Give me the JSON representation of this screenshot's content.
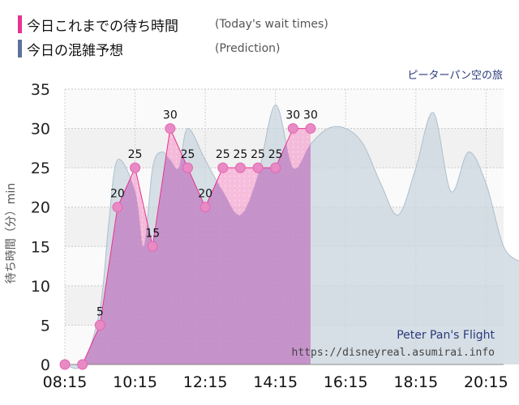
{
  "legend": {
    "today": {
      "label_jp": "今日これまでの待ち時間",
      "label_en": "(Today's wait times)",
      "color": "#e8338f"
    },
    "prediction": {
      "label_jp": "今日の混雑予想",
      "label_en": "(Prediction)",
      "color": "#5b7399"
    }
  },
  "ride": {
    "name_jp": "ピーターパン空の旅",
    "name_en": "Peter Pan's Flight",
    "url": "https://disneyreal.asumirai.info"
  },
  "chart_data": {
    "type": "area",
    "ylabel": "待ち時間（分）min",
    "ylim": [
      0,
      35
    ],
    "yticks": [
      0,
      5,
      10,
      15,
      20,
      25,
      30,
      35
    ],
    "xticks": [
      "08:15",
      "10:15",
      "12:15",
      "14:15",
      "16:15",
      "18:15",
      "20:15"
    ],
    "xlim_minutes": [
      495,
      1245
    ],
    "grid": true,
    "series": [
      {
        "name": "今日これまでの待ち時間",
        "kind": "actual",
        "color": "#e8338f",
        "points": [
          {
            "t": "08:15",
            "v": 0,
            "label": ""
          },
          {
            "t": "08:45",
            "v": 0,
            "label": ""
          },
          {
            "t": "09:15",
            "v": 5,
            "label": "5"
          },
          {
            "t": "09:45",
            "v": 20,
            "label": "20"
          },
          {
            "t": "10:15",
            "v": 25,
            "label": "25"
          },
          {
            "t": "10:45",
            "v": 15,
            "label": "15"
          },
          {
            "t": "11:15",
            "v": 30,
            "label": "30"
          },
          {
            "t": "11:45",
            "v": 25,
            "label": "25"
          },
          {
            "t": "12:15",
            "v": 20,
            "label": "20"
          },
          {
            "t": "12:45",
            "v": 25,
            "label": "25"
          },
          {
            "t": "13:15",
            "v": 25,
            "label": "25"
          },
          {
            "t": "13:45",
            "v": 25,
            "label": "25"
          },
          {
            "t": "14:15",
            "v": 25,
            "label": "25"
          },
          {
            "t": "14:45",
            "v": 30,
            "label": "30"
          },
          {
            "t": "15:15",
            "v": 30,
            "label": "30"
          }
        ]
      },
      {
        "name": "今日の混雑予想",
        "kind": "prediction",
        "color": "#5b7399",
        "points": [
          {
            "t": "08:15",
            "v": 0
          },
          {
            "t": "08:45",
            "v": 0
          },
          {
            "t": "09:15",
            "v": 7
          },
          {
            "t": "09:30",
            "v": 18
          },
          {
            "t": "09:45",
            "v": 26
          },
          {
            "t": "10:15",
            "v": 22
          },
          {
            "t": "10:30",
            "v": 15
          },
          {
            "t": "10:45",
            "v": 25
          },
          {
            "t": "11:00",
            "v": 27
          },
          {
            "t": "11:15",
            "v": 26
          },
          {
            "t": "11:30",
            "v": 25
          },
          {
            "t": "11:45",
            "v": 30
          },
          {
            "t": "12:15",
            "v": 26
          },
          {
            "t": "12:45",
            "v": 22
          },
          {
            "t": "13:15",
            "v": 19
          },
          {
            "t": "13:45",
            "v": 24
          },
          {
            "t": "14:15",
            "v": 33
          },
          {
            "t": "14:45",
            "v": 25
          },
          {
            "t": "15:15",
            "v": 28
          },
          {
            "t": "15:45",
            "v": 30
          },
          {
            "t": "16:15",
            "v": 30
          },
          {
            "t": "16:45",
            "v": 28
          },
          {
            "t": "17:15",
            "v": 23
          },
          {
            "t": "17:45",
            "v": 19
          },
          {
            "t": "18:15",
            "v": 25
          },
          {
            "t": "18:45",
            "v": 32
          },
          {
            "t": "19:15",
            "v": 22
          },
          {
            "t": "19:45",
            "v": 27
          },
          {
            "t": "20:15",
            "v": 23
          },
          {
            "t": "20:45",
            "v": 15
          },
          {
            "t": "21:15",
            "v": 13
          }
        ]
      }
    ]
  }
}
